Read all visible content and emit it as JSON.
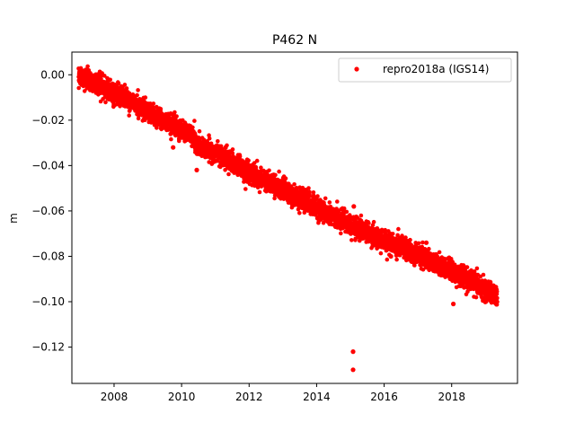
{
  "chart_data": {
    "type": "scatter",
    "title": "P462 N",
    "xlabel": "",
    "ylabel": "m",
    "xlim": [
      2006.75,
      2019.95
    ],
    "ylim": [
      -0.136,
      0.01
    ],
    "xticks": [
      2008,
      2010,
      2012,
      2014,
      2016,
      2018
    ],
    "xtick_labels": [
      "2008",
      "2010",
      "2012",
      "2014",
      "2016",
      "2018"
    ],
    "yticks": [
      0.0,
      -0.02,
      -0.04,
      -0.06,
      -0.08,
      -0.1,
      -0.12
    ],
    "ytick_labels": [
      "0.00",
      "−0.02",
      "−0.04",
      "−0.06",
      "−0.08",
      "−0.10",
      "−0.12"
    ],
    "grid": false,
    "legend": {
      "placement": "top-right",
      "entries": [
        "repro2018a (IGS14)"
      ]
    },
    "series": [
      {
        "name": "repro2018a (IGS14)",
        "color": "#ff0000",
        "marker": "circle",
        "trend": {
          "x_start": 2006.95,
          "x_end": 2019.35,
          "y_start": 0.0,
          "y_end": -0.098,
          "scatter_sd": 0.0022
        },
        "x": [
          2007.0,
          2007.5,
          2008.0,
          2008.5,
          2009.0,
          2009.5,
          2010.0,
          2010.3,
          2010.5,
          2011.0,
          2011.5,
          2012.0,
          2012.5,
          2013.0,
          2013.5,
          2014.0,
          2014.5,
          2015.0,
          2015.5,
          2016.0,
          2016.5,
          2017.0,
          2017.5,
          2018.0,
          2018.5,
          2019.0,
          2019.3
        ],
        "y": [
          -0.001,
          -0.004,
          -0.008,
          -0.012,
          -0.016,
          -0.02,
          -0.024,
          -0.027,
          -0.032,
          -0.034,
          -0.039,
          -0.043,
          -0.047,
          -0.05,
          -0.055,
          -0.058,
          -0.062,
          -0.066,
          -0.07,
          -0.073,
          -0.076,
          -0.079,
          -0.083,
          -0.087,
          -0.09,
          -0.095,
          -0.097
        ],
        "outliers": [
          {
            "x": 2015.08,
            "y": -0.122
          },
          {
            "x": 2015.08,
            "y": -0.13
          },
          {
            "x": 2015.1,
            "y": -0.058
          },
          {
            "x": 2010.45,
            "y": -0.042
          },
          {
            "x": 2009.75,
            "y": -0.032
          },
          {
            "x": 2017.25,
            "y": -0.074
          },
          {
            "x": 2016.2,
            "y": -0.08
          },
          {
            "x": 2018.05,
            "y": -0.101
          }
        ]
      }
    ]
  }
}
